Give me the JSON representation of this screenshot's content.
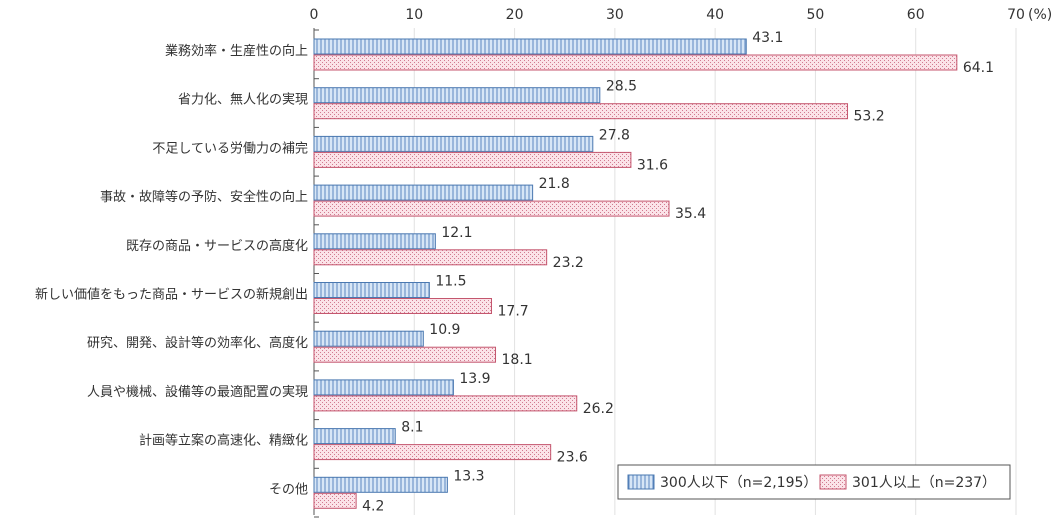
{
  "chart_data": {
    "type": "bar",
    "orientation": "horizontal",
    "categories": [
      "業務効率・生産性の向上",
      "省力化、無人化の実現",
      "不足している労働力の補完",
      "事故・故障等の予防、安全性の向上",
      "既存の商品・サービスの高度化",
      "新しい価値をもった商品・サービスの新規創出",
      "研究、開発、設計等の効率化、高度化",
      "人員や機械、設備等の最適配置の実現",
      "計画等立案の高速化、精緻化",
      "その他"
    ],
    "series": [
      {
        "name": "300人以下（n=2,195）",
        "values": [
          43.1,
          28.5,
          27.8,
          21.8,
          12.1,
          11.5,
          10.9,
          13.9,
          8.1,
          13.3
        ],
        "color": "#c5d9ef",
        "stroke": "#4a78b0"
      },
      {
        "name": "301人以上（n=237）",
        "values": [
          64.1,
          53.2,
          31.6,
          35.4,
          23.2,
          17.7,
          18.1,
          26.2,
          23.6,
          4.2
        ],
        "color": "#f7d4dc",
        "stroke": "#c4566e"
      }
    ],
    "xlim": [
      0,
      70
    ],
    "ticks": [
      "0",
      "10",
      "20",
      "30",
      "40",
      "50",
      "60",
      "70"
    ],
    "unit_label": "(%)",
    "grid": true,
    "legend_position": "bottom-right",
    "value_labels": [
      [
        "43.1",
        "28.5",
        "27.8",
        "21.8",
        "12.1",
        "11.5",
        "10.9",
        "13.9",
        "8.1",
        "13.3"
      ],
      [
        "64.1",
        "53.2",
        "31.6",
        "35.4",
        "23.2",
        "17.7",
        "18.1",
        "26.2",
        "23.6",
        "4.2"
      ]
    ]
  }
}
